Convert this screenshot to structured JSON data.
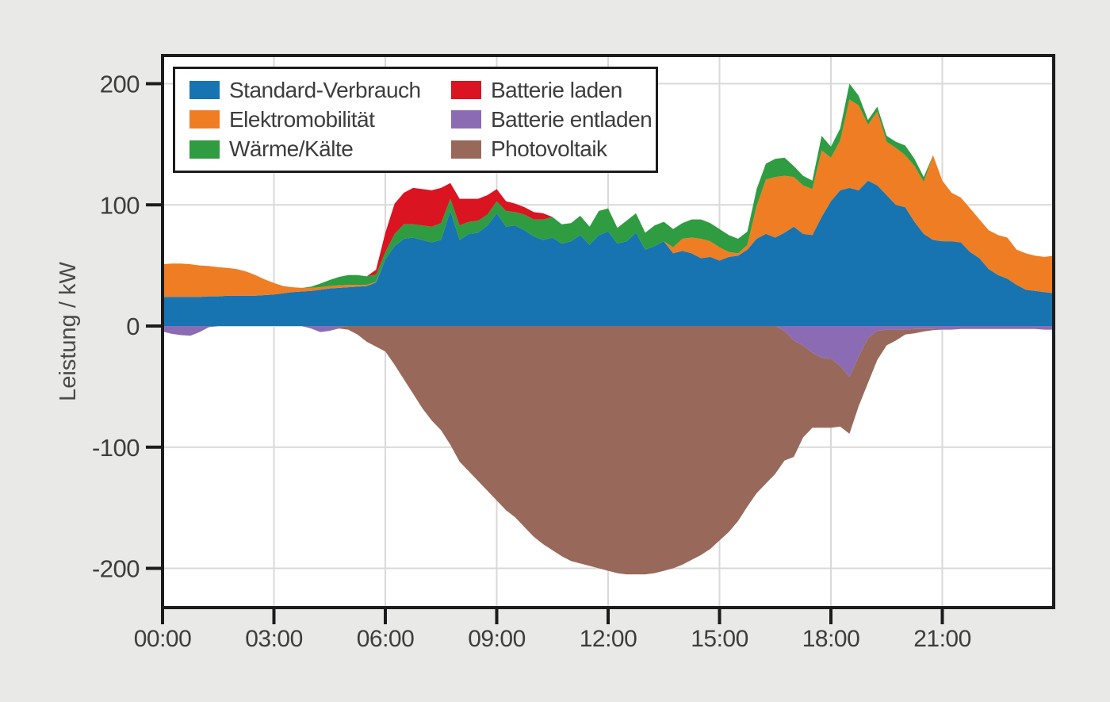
{
  "figure": {
    "background_color": "#e9e9e7",
    "plot_background_color": "#ffffff",
    "frame_color": "#1c1c1c",
    "grid_color": "#d9d9d9",
    "text_color": "#3d3d3d",
    "axis_title_color": "#4a4a4a"
  },
  "chart_data": {
    "type": "area",
    "stacked": true,
    "title": "",
    "xlabel": "",
    "ylabel": "Leistung / kW",
    "x_start_hour": 0,
    "x_step_hours": 0.25,
    "x_range_hours": [
      0,
      24
    ],
    "ylim": [
      -232,
      223
    ],
    "grid": true,
    "legend_position": "top-left-inside",
    "y_axis": {
      "title": "Leistung / kW",
      "ticks": [
        {
          "label": "200",
          "value": 200
        },
        {
          "label": "100",
          "value": 100
        },
        {
          "label": "0",
          "value": 0
        },
        {
          "label": "-100",
          "value": -100
        },
        {
          "label": "-200",
          "value": -200
        }
      ]
    },
    "x_axis": {
      "ticks": [
        {
          "label": "00:00",
          "hour": 0
        },
        {
          "label": "03:00",
          "hour": 3
        },
        {
          "label": "06:00",
          "hour": 6
        },
        {
          "label": "09:00",
          "hour": 9
        },
        {
          "label": "12:00",
          "hour": 12
        },
        {
          "label": "15:00",
          "hour": 15
        },
        {
          "label": "18:00",
          "hour": 18
        },
        {
          "label": "21:00",
          "hour": 21
        }
      ]
    },
    "series": [
      {
        "name": "Standard-Verbrauch",
        "color": "#1774b0",
        "sign": "positive",
        "values": [
          24,
          24,
          24,
          24,
          24,
          24.5,
          24.5,
          25,
          25,
          25,
          25,
          25.5,
          26,
          27,
          28,
          28.5,
          29,
          30,
          31,
          31.5,
          32,
          32.5,
          33,
          36,
          55,
          66,
          72,
          73,
          71,
          69,
          71,
          95,
          71,
          76,
          77,
          83,
          93,
          82,
          83,
          79,
          74,
          71,
          73,
          68,
          70,
          75,
          67,
          75,
          78,
          68,
          70,
          77,
          63,
          66,
          70,
          60,
          62,
          60,
          56,
          57,
          54,
          57,
          58,
          63,
          72,
          76,
          73,
          77,
          82,
          76,
          75,
          90,
          103,
          112,
          114,
          112,
          120,
          116,
          108,
          100,
          98,
          86,
          76,
          71,
          70,
          70,
          69,
          61,
          56,
          47,
          42,
          39,
          34,
          30,
          29,
          28,
          27
        ]
      },
      {
        "name": "Elektromobilität",
        "color": "#ef7d23",
        "sign": "positive",
        "values": [
          27,
          27.5,
          27.5,
          27,
          26,
          25,
          24,
          23,
          22,
          20,
          17,
          13,
          9.5,
          6,
          4,
          3,
          2.5,
          2,
          2,
          2,
          2,
          1.5,
          1,
          0.5,
          0,
          0,
          0,
          0,
          0,
          0,
          0,
          0,
          0,
          0,
          0,
          0,
          0,
          0,
          0,
          0,
          0,
          0,
          0,
          0,
          0,
          0,
          0,
          0,
          0,
          0,
          0,
          0,
          0,
          0,
          0,
          5,
          10,
          13,
          16,
          13,
          11,
          4,
          2,
          4,
          27,
          45,
          50,
          47,
          41,
          40,
          38,
          55,
          36,
          41,
          73,
          70,
          46,
          61,
          44,
          47,
          43,
          46,
          43,
          70,
          50,
          40,
          37,
          36,
          32,
          32,
          33,
          34,
          29,
          30,
          29,
          29,
          31
        ]
      },
      {
        "name": "Wärme/Kälte",
        "color": "#2f9c41",
        "sign": "positive",
        "values": [
          0,
          0,
          0,
          0,
          0,
          0,
          0,
          0,
          0,
          0,
          0,
          0,
          0,
          0,
          0,
          0,
          1,
          3,
          5,
          7,
          8,
          8,
          7,
          6,
          6,
          10,
          12,
          11,
          12,
          13,
          14,
          10,
          12,
          10,
          10,
          9,
          10,
          13,
          11,
          13,
          14,
          17,
          17,
          16,
          15,
          16,
          15,
          20,
          19,
          13,
          17,
          16,
          14,
          17,
          16,
          15,
          13,
          15,
          16,
          15,
          15,
          14,
          12,
          11,
          14,
          13,
          15,
          15,
          9,
          8,
          7,
          12,
          9,
          10,
          13,
          8,
          4,
          4,
          5,
          5,
          8,
          6,
          4,
          0,
          0,
          0,
          0,
          0,
          0,
          0,
          0,
          0,
          0,
          0,
          0,
          0,
          0
        ]
      },
      {
        "name": "Batterie laden",
        "color": "#da1420",
        "sign": "positive",
        "values": [
          0,
          0,
          0,
          0,
          0,
          0,
          0,
          0,
          0,
          0,
          0,
          0,
          0,
          0,
          0,
          0,
          0,
          0,
          0,
          0,
          0,
          0,
          0,
          4,
          16,
          25,
          26,
          30,
          30,
          30,
          29,
          13,
          22,
          19,
          18,
          16,
          10,
          8,
          7,
          6,
          6,
          5,
          0,
          0,
          0,
          0,
          0,
          0,
          0,
          0,
          0,
          0,
          0,
          0,
          0,
          0,
          0,
          0,
          0,
          0,
          0,
          0,
          0,
          0,
          0,
          0,
          0,
          0,
          0,
          0,
          0,
          0,
          0,
          0,
          0,
          0,
          0,
          0,
          0,
          0,
          0,
          0,
          0,
          0,
          0,
          0,
          0,
          0,
          0,
          0,
          0,
          0,
          0,
          0,
          0,
          0,
          0
        ]
      },
      {
        "name": "Batterie entladen",
        "color": "#8b6cb4",
        "sign": "negative",
        "values": [
          4.5,
          6.5,
          7.5,
          8,
          5,
          1,
          0,
          0,
          0,
          0,
          0,
          0,
          0,
          0,
          0,
          0,
          2,
          5,
          4,
          1,
          0,
          0,
          0,
          0,
          0,
          0,
          0,
          0,
          0,
          0,
          0,
          0,
          0,
          0,
          0,
          0,
          0,
          0,
          0,
          0,
          0,
          0,
          0,
          0,
          0,
          0,
          0,
          0,
          0,
          0,
          0,
          0,
          0,
          0,
          0,
          0,
          0,
          0,
          0,
          0,
          0,
          0,
          0,
          0,
          0,
          0,
          0,
          4,
          12,
          16,
          22,
          26,
          27,
          33,
          42,
          25,
          10,
          4,
          3,
          3,
          3,
          2.5,
          2.5,
          2.5,
          3,
          3,
          2.5,
          2.5,
          2.5,
          2.5,
          2.5,
          2.5,
          2.5,
          2.5,
          2.5,
          3,
          3
        ]
      },
      {
        "name": "Photovoltaik",
        "color": "#98695b",
        "sign": "negative",
        "values": [
          0,
          0,
          0,
          0,
          0,
          0,
          0,
          0,
          0,
          0,
          0,
          0,
          0,
          0,
          0,
          0,
          0,
          0,
          0,
          1,
          3,
          7,
          13,
          17,
          21,
          32,
          44,
          56,
          68,
          78,
          86,
          98,
          112,
          120,
          128,
          136,
          144,
          152,
          158,
          166,
          174,
          180,
          185,
          190,
          194,
          196,
          198,
          200,
          202,
          204,
          205,
          205,
          205,
          204,
          202,
          200,
          197,
          193,
          189,
          184,
          177,
          170,
          161,
          149,
          138,
          130,
          122,
          107,
          96,
          76,
          62,
          58,
          57,
          50,
          47,
          41,
          37,
          24,
          13,
          9,
          4,
          3.5,
          2,
          1,
          0,
          0,
          0,
          0,
          0,
          0,
          0,
          0,
          0,
          0,
          0,
          0,
          0
        ]
      }
    ]
  }
}
